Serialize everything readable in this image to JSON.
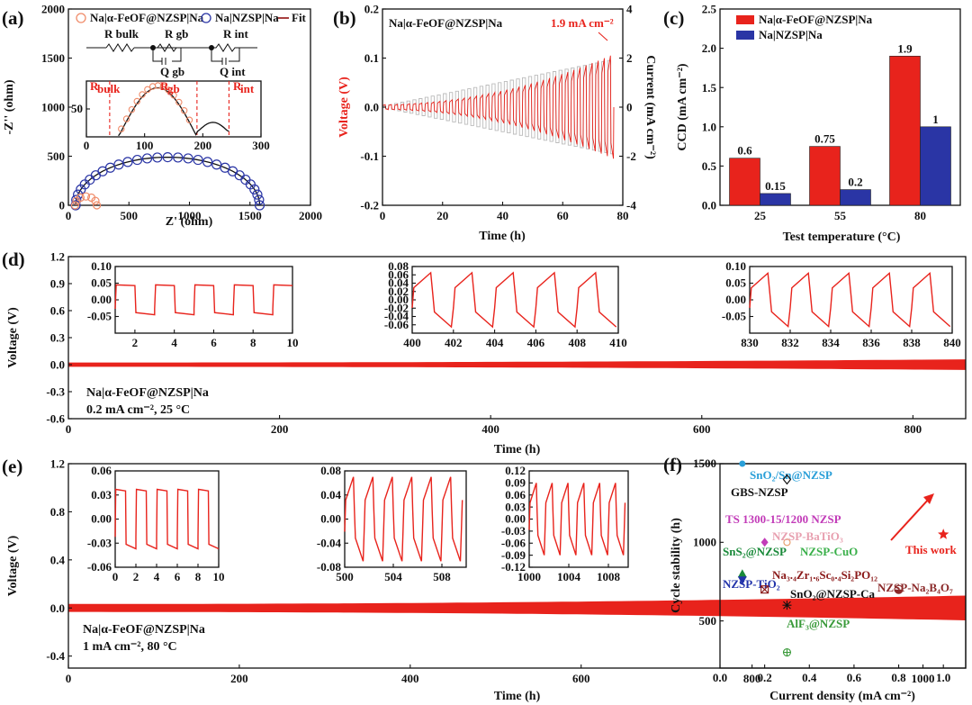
{
  "colors": {
    "red": "#e8231c",
    "blue": "#2a35a5",
    "orange": "#f08c6a",
    "lightgray": "#bbbbbb"
  },
  "panels": {
    "a": {
      "label": "(a)",
      "xlabel": "Z' (ohm)",
      "ylabel": "-Z'' (ohm)",
      "legend": [
        "Na|α-FeOF@NZSP|Na",
        "Na|NZSP|Na",
        "Fit"
      ],
      "circuit": [
        "R bulk",
        "R gb",
        "R int",
        "Q gb",
        "Q int"
      ],
      "inset_labels": [
        "R",
        "bulk",
        "R",
        "gb",
        "R",
        "int"
      ]
    },
    "b": {
      "label": "(b)",
      "title": "Na|α-FeOF@NZSP|Na",
      "annotation": "1.9 mA cm⁻²",
      "xlabel": "Time  (h)",
      "ylabel": "Voltage (V)",
      "y2label": "Current (mA cm⁻²)"
    },
    "c": {
      "label": "(c)",
      "xlabel": "Test temperature (°C)",
      "ylabel": "CCD (mA cm⁻²)",
      "legend": [
        "Na|α-FeOF@NZSP|Na",
        "Na|NZSP|Na"
      ]
    },
    "d": {
      "label": "(d)",
      "xlabel": "Time (h)",
      "ylabel": "Voltage (V)",
      "text1": "Na|α-FeOF@NZSP|Na",
      "text2": "0.2 mA cm⁻², 25 °C"
    },
    "e": {
      "label": "(e)",
      "xlabel": "Time (h)",
      "ylabel": "Voltage (V)",
      "text1": "Na|α-FeOF@NZSP|Na",
      "text2": "1 mA cm⁻², 80 °C"
    },
    "f": {
      "label": "(f)",
      "xlabel": "Current density (mA cm⁻²)",
      "ylabel": "Cycle stability (h)"
    }
  },
  "chart_data": [
    {
      "panel": "a",
      "type": "scatter",
      "title": "",
      "xlim": [
        0,
        2000
      ],
      "ylim": [
        0,
        2000
      ],
      "xticks": [
        0,
        500,
        1000,
        1500,
        2000
      ],
      "yticks": [
        0,
        500,
        1000,
        1500,
        2000
      ],
      "series": [
        {
          "name": "Na|α-FeOF@NZSP|Na",
          "semicircle": {
            "x_start": 55,
            "x_end": 235,
            "peak": 90
          }
        },
        {
          "name": "Na|NZSP|Na",
          "semicircle": {
            "x_start": 60,
            "x_end": 1580,
            "peak": 490
          }
        },
        {
          "name": "Fit"
        }
      ],
      "inset": {
        "xlim": [
          0,
          300
        ],
        "ylim": [
          0,
          100
        ],
        "xticks": [
          0,
          100,
          200,
          300
        ],
        "yticks": [
          50
        ],
        "markers": [
          40,
          190,
          245
        ]
      }
    },
    {
      "panel": "b",
      "type": "line",
      "title": "Na|α-FeOF@NZSP|Na",
      "xlim": [
        0,
        80
      ],
      "ylim": [
        -0.2,
        0.2
      ],
      "y2lim": [
        -4,
        4
      ],
      "xticks": [
        0,
        20,
        40,
        60,
        80
      ],
      "yticks": [
        -0.2,
        -0.1,
        0.0,
        0.1,
        0.2
      ],
      "y2ticks": [
        -4,
        -2,
        0,
        2,
        4
      ],
      "max_current": 1.9,
      "voltage_start": 0.005,
      "voltage_end": 0.105
    },
    {
      "panel": "c",
      "type": "bar",
      "categories": [
        "25",
        "55",
        "80"
      ],
      "series": [
        {
          "name": "Na|α-FeOF@NZSP|Na",
          "values": [
            0.6,
            0.75,
            1.9
          ]
        },
        {
          "name": "Na|NZSP|Na",
          "values": [
            0.15,
            0.2,
            1
          ]
        }
      ],
      "value_labels": [
        [
          "0.6",
          "0.75",
          "1.9"
        ],
        [
          "0.15",
          "0.2",
          "1"
        ]
      ],
      "ylim": [
        0,
        2.5
      ],
      "yticks": [
        0.0,
        0.5,
        1.0,
        1.5,
        2.0,
        2.5
      ]
    },
    {
      "panel": "d",
      "type": "line",
      "xlim": [
        0,
        850
      ],
      "ylim": [
        -0.6,
        1.2
      ],
      "xticks": [
        0,
        200,
        400,
        600,
        800
      ],
      "yticks": [
        -0.6,
        -0.3,
        0.0,
        0.3,
        0.6,
        0.9,
        1.2
      ],
      "band_halfwidth_start": 0.02,
      "band_halfwidth_end": 0.055,
      "insets": [
        {
          "xlim": [
            1,
            10
          ],
          "ylim": [
            -0.1,
            0.1
          ],
          "xticks": [
            2,
            4,
            6,
            8,
            10
          ],
          "yticks": [
            -0.05,
            0.0,
            0.05,
            0.1
          ],
          "amp": 0.045,
          "period": 2
        },
        {
          "xlim": [
            400,
            410
          ],
          "ylim": [
            -0.08,
            0.08
          ],
          "xticks": [
            400,
            402,
            404,
            406,
            408,
            410
          ],
          "yticks": [
            -0.06,
            -0.04,
            -0.02,
            0.0,
            0.02,
            0.04,
            0.06,
            0.08
          ],
          "amp": 0.065,
          "period": 2
        },
        {
          "xlim": [
            830,
            840
          ],
          "ylim": [
            -0.1,
            0.1
          ],
          "xticks": [
            830,
            832,
            834,
            836,
            838,
            840
          ],
          "yticks": [
            -0.05,
            0.0,
            0.05,
            0.1
          ],
          "amp": 0.08,
          "period": 2
        }
      ]
    },
    {
      "panel": "e",
      "type": "line",
      "xlim": [
        0,
        1050
      ],
      "ylim": [
        -0.5,
        1.2
      ],
      "xticks": [
        0,
        200,
        400,
        600,
        800,
        1000
      ],
      "yticks": [
        -0.4,
        0.0,
        0.4,
        0.8,
        1.2
      ],
      "band_halfwidth_start": 0.03,
      "band_halfwidth_end": 0.1,
      "insets": [
        {
          "xlim": [
            0,
            10
          ],
          "ylim": [
            -0.06,
            0.06
          ],
          "xticks": [
            0,
            2,
            4,
            6,
            8,
            10
          ],
          "yticks": [
            -0.06,
            -0.03,
            0.0,
            0.03,
            0.06
          ],
          "amp": 0.037,
          "period": 2
        },
        {
          "xlim": [
            500,
            510
          ],
          "ylim": [
            -0.08,
            0.08
          ],
          "xticks": [
            500,
            504,
            508
          ],
          "yticks": [
            -0.08,
            -0.04,
            0.0,
            0.04,
            0.08
          ],
          "amp": 0.07,
          "period": 1.6
        },
        {
          "xlim": [
            1000,
            1010
          ],
          "ylim": [
            -0.12,
            0.12
          ],
          "xticks": [
            1000,
            1004,
            1008
          ],
          "yticks": [
            -0.12,
            -0.09,
            -0.06,
            -0.03,
            0.0,
            0.03,
            0.06,
            0.09,
            0.12
          ],
          "amp": 0.09,
          "period": 1.6
        }
      ]
    },
    {
      "panel": "f",
      "type": "scatter",
      "xlim": [
        0.0,
        1.1
      ],
      "ylim": [
        200,
        1500
      ],
      "xticks": [
        0.0,
        0.2,
        0.4,
        0.6,
        0.8,
        1.0
      ],
      "yticks": [
        500,
        1000,
        1500
      ],
      "points": [
        {
          "name": "SnO₂/Sn@NZSP",
          "x": 0.1,
          "y": 1500,
          "color": "#2a9fd8",
          "marker": "circle"
        },
        {
          "name": "GBS-NZSP",
          "x": 0.3,
          "y": 1400,
          "color": "#111111",
          "marker": "diamond-open"
        },
        {
          "name": "TS 1300-15/1200 NZSP",
          "x": 0.2,
          "y": 1000,
          "color": "#c23bb8",
          "marker": "diamond"
        },
        {
          "name": "NZSP-BaTiO₃",
          "x": 0.3,
          "y": 1000,
          "color": "#e8a0b0",
          "marker": "circle-star"
        },
        {
          "name": "SnS₂@NZSP",
          "x": 0.1,
          "y": 800,
          "color": "#1a8a3a",
          "marker": "triangle-up"
        },
        {
          "name": "NZSP-CuO",
          "x": 0.32,
          "y": 1000,
          "color": "#3ab04a",
          "marker": "none"
        },
        {
          "name": "NZSP-TiO₂",
          "x": 0.1,
          "y": 760,
          "color": "#2233aa",
          "marker": "triangle-down"
        },
        {
          "name": "Na₃.₄Zr₁.₆Sc₀.₄Si₂PO₁₂",
          "x": 0.2,
          "y": 700,
          "color": "#8b1a1a",
          "marker": "square-x"
        },
        {
          "name": "SnO₂@NZSP-Ca",
          "x": 0.3,
          "y": 600,
          "color": "#111111",
          "marker": "asterisk"
        },
        {
          "name": "AlF₃@NZSP",
          "x": 0.3,
          "y": 300,
          "color": "#3a9a3a",
          "marker": "circle-plus"
        },
        {
          "name": "NZSP-Na₂B₄O₇",
          "x": 0.8,
          "y": 700,
          "color": "#8b2a2a",
          "marker": "half-circle"
        },
        {
          "name": "This work",
          "x": 1.0,
          "y": 1050,
          "color": "#e8231c",
          "marker": "star"
        }
      ]
    }
  ]
}
